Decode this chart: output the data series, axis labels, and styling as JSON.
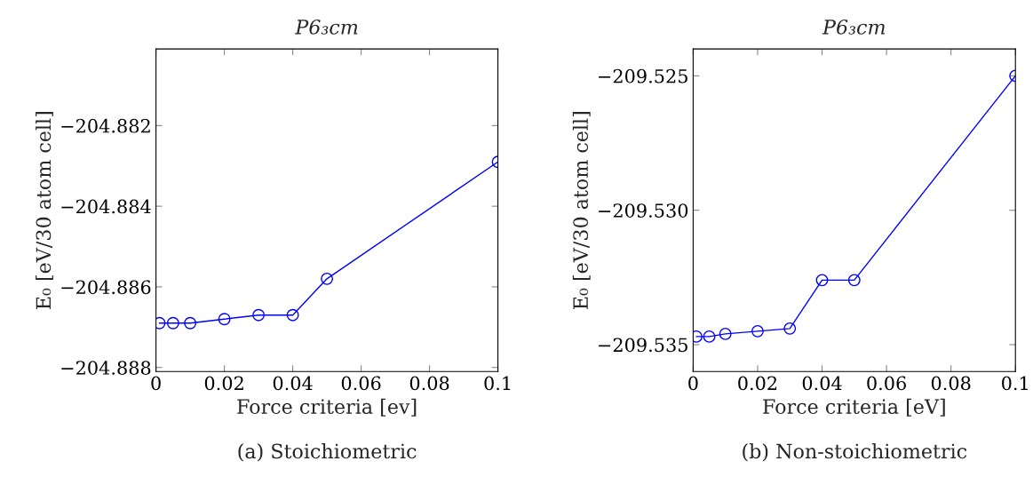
{
  "chart_data": [
    {
      "type": "line",
      "title": "P6₃cm",
      "xlabel": "Force criteria [ev]",
      "ylabel": "E₀ [eV/30 atom cell]",
      "annotations": [
        "(a) Stoichiometric"
      ],
      "marker": "circle",
      "line_style": "solid",
      "grid": false,
      "legend": false,
      "x": [
        0.001,
        0.005,
        0.01,
        0.02,
        0.03,
        0.04,
        0.05,
        0.1
      ],
      "series": [
        {
          "color": "#0000ff",
          "values": [
            -204.8869,
            -204.8869,
            -204.8869,
            -204.8868,
            -204.8867,
            -204.8867,
            -204.8858,
            -204.8829
          ]
        }
      ],
      "xlim": [
        0,
        0.1
      ],
      "xticks": [
        0,
        0.02,
        0.04,
        0.06,
        0.08,
        0.1
      ],
      "ylim": [
        -204.8881,
        -204.8801
      ],
      "yticks": [
        {
          "value": -204.882,
          "label": "−204.882"
        },
        {
          "value": -204.884,
          "label": "−204.884"
        },
        {
          "value": -204.886,
          "label": "−204.886"
        },
        {
          "value": -204.888,
          "label": "−204.888"
        }
      ]
    },
    {
      "type": "line",
      "title": "P6₃cm",
      "xlabel": "Force criteria [eV]",
      "ylabel": "E₀ [eV/30 atom cell]",
      "annotations": [
        "(b) Non-stoichiometric"
      ],
      "marker": "circle",
      "line_style": "solid",
      "grid": false,
      "legend": false,
      "x": [
        0.001,
        0.005,
        0.01,
        0.02,
        0.03,
        0.04,
        0.05,
        0.1
      ],
      "series": [
        {
          "color": "#0000ff",
          "values": [
            -209.5347,
            -209.5347,
            -209.5346,
            -209.5345,
            -209.5344,
            -209.5326,
            -209.5326,
            -209.525
          ]
        }
      ],
      "xlim": [
        0,
        0.1
      ],
      "xticks": [
        0,
        0.02,
        0.04,
        0.06,
        0.08,
        0.1
      ],
      "ylim": [
        -209.536,
        -209.524
      ],
      "yticks": [
        {
          "value": -209.525,
          "label": "−209.525"
        },
        {
          "value": -209.53,
          "label": "−209.530"
        },
        {
          "value": -209.535,
          "label": "−209.535"
        }
      ]
    }
  ]
}
